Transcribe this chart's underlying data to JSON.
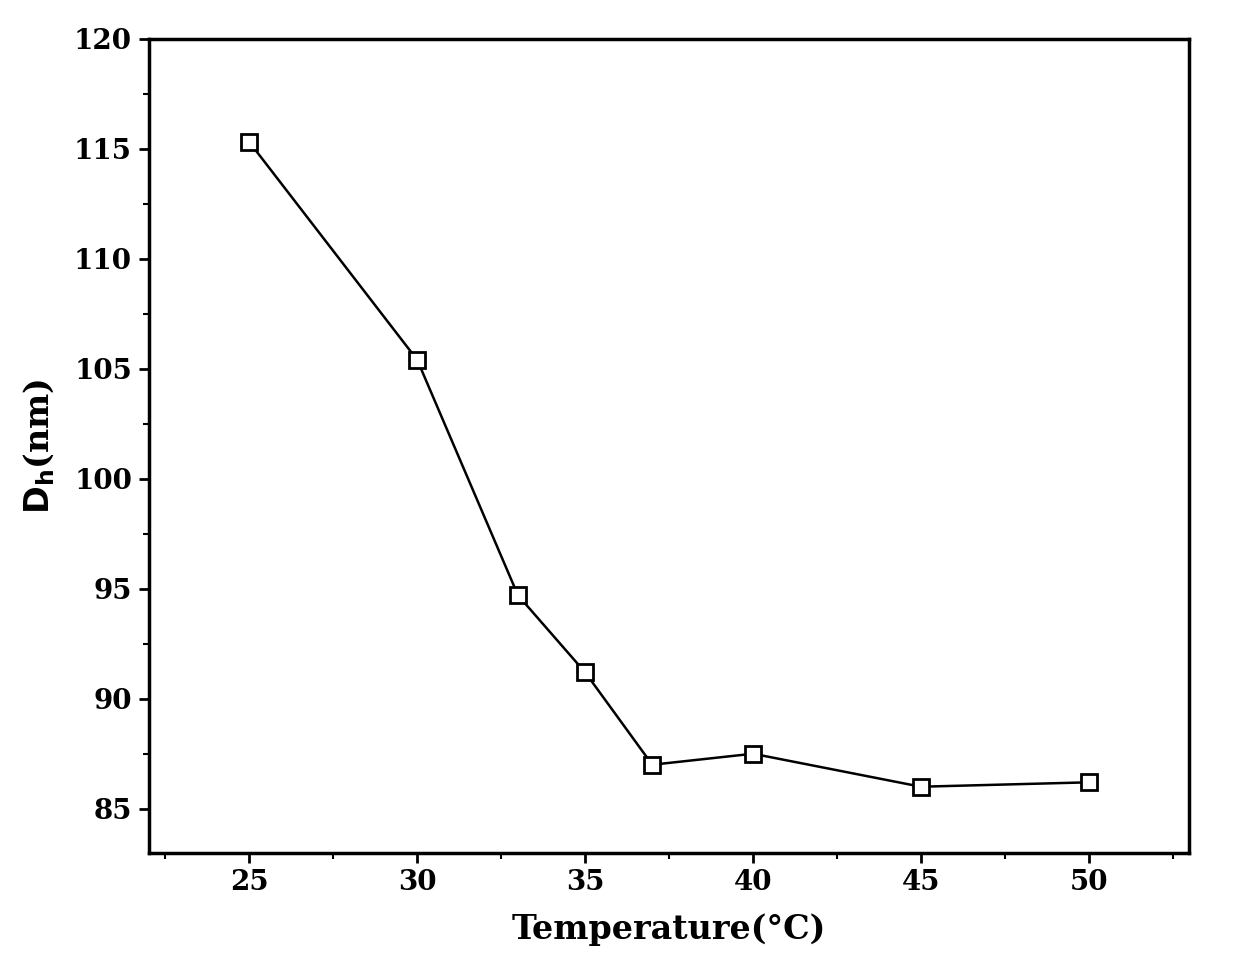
{
  "x": [
    25,
    30,
    33,
    35,
    37,
    40,
    45,
    50
  ],
  "y": [
    115.3,
    105.4,
    94.7,
    91.2,
    87.0,
    87.5,
    86.0,
    86.2
  ],
  "xlabel": "Temperature(°C)",
  "xlim": [
    22,
    53
  ],
  "ylim": [
    83,
    120
  ],
  "xticks": [
    25,
    30,
    35,
    40,
    45,
    50
  ],
  "yticks": [
    85,
    90,
    95,
    100,
    105,
    110,
    115,
    120
  ],
  "line_color": "#000000",
  "marker_face_color": "#ffffff",
  "marker_edge_color": "#000000",
  "marker_size": 11,
  "marker_edge_width": 2.0,
  "line_width": 1.8,
  "background_color": "#ffffff",
  "tick_fontsize": 20,
  "label_fontsize": 24,
  "spine_linewidth": 2.5
}
